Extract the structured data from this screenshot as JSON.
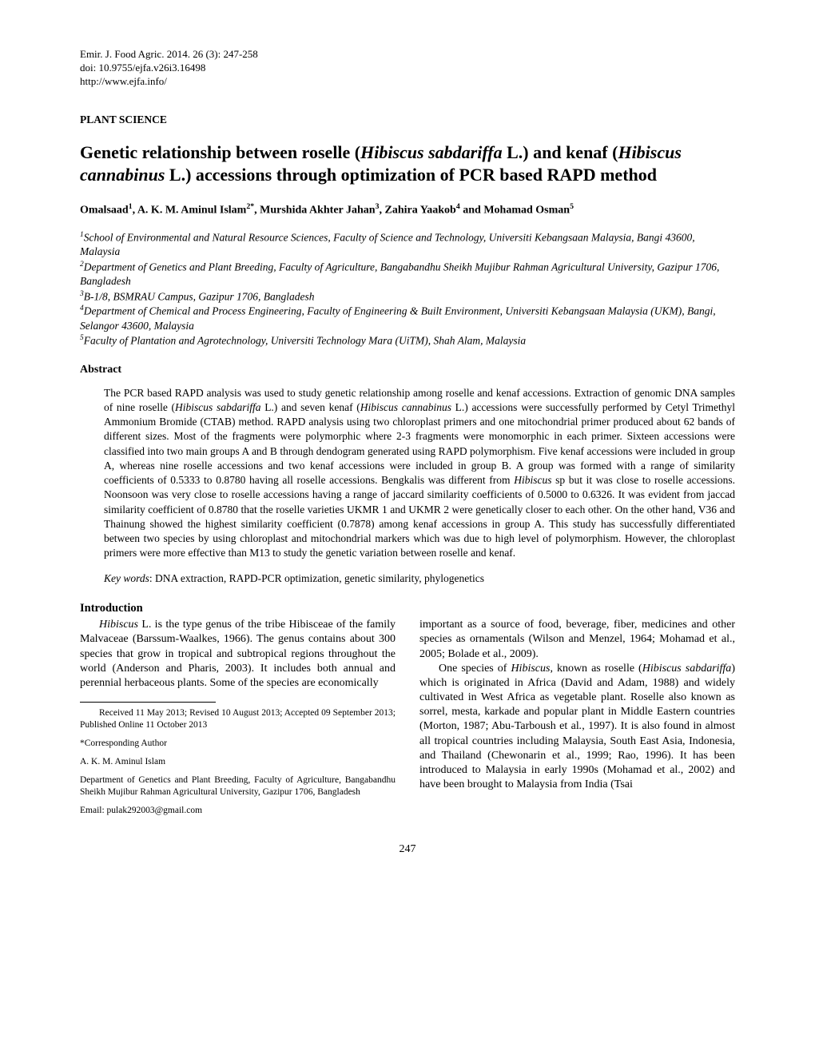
{
  "header": {
    "journal": "Emir. J. Food Agric. 2014. 26 (3): 247-258",
    "doi": "doi: 10.9755/ejfa.v26i3.16498",
    "url": "http://www.ejfa.info/"
  },
  "section_label": "PLANT SCIENCE",
  "title_html": "Genetic relationship between roselle (<span class=\"italic\">Hibiscus sabdariffa</span> L.) and kenaf (<span class=\"italic\">Hibiscus cannabinus</span> L.) accessions through optimization of PCR based RAPD method",
  "authors_html": "Omalsaad<sup>1</sup>, A. K. M. Aminul Islam<sup>2*</sup>, Murshida Akhter Jahan<sup>3</sup>, Zahira Yaakob<sup>4</sup> and Mohamad Osman<sup>5</sup>",
  "affiliations_html": "<sup>1</sup>School of Environmental and Natural Resource Sciences, Faculty of Science and Technology, Universiti Kebangsaan Malaysia, Bangi 43600, Malaysia<br><sup>2</sup>Department of Genetics and Plant Breeding, Faculty of Agriculture, Bangabandhu Sheikh Mujibur Rahman Agricultural University, Gazipur 1706, Bangladesh<br><sup>3</sup>B-1/8, BSMRAU Campus, Gazipur 1706, Bangladesh<br><sup>4</sup>Department of Chemical and Process Engineering, Faculty of Engineering & Built Environment, Universiti Kebangsaan Malaysia (UKM), Bangi, Selangor 43600, Malaysia<br><sup>5</sup>Faculty of Plantation and Agrotechnology, Universiti Technology Mara (UiTM), Shah Alam, Malaysia",
  "abstract_label": "Abstract",
  "abstract_body_html": "The PCR based RAPD analysis was used to study genetic relationship among roselle and kenaf accessions. Extraction of genomic DNA samples of nine roselle (<span class=\"italic\">Hibiscus sabdariffa</span> L.) and seven kenaf (<span class=\"italic\">Hibiscus cannabinus</span> L.) accessions were successfully performed by Cetyl Trimethyl Ammonium Bromide (CTAB) method. RAPD analysis using two chloroplast primers and one mitochondrial primer produced about 62 bands of different sizes. Most of the fragments were polymorphic where 2-3 fragments were monomorphic in each primer. Sixteen accessions were classified into two main groups A and B through dendogram generated using RAPD polymorphism. Five kenaf accessions were included in group A, whereas nine roselle accessions and two kenaf accessions were included in group B. A group was formed with a range of similarity coefficients of 0.5333 to 0.8780 having all roselle accessions. Bengkalis was different from <span class=\"italic\">Hibiscus</span> sp but it was close to roselle accessions. Noonsoon was very close to roselle accessions having a range of jaccard similarity coefficients of 0.5000 to 0.6326. It was evident from jaccad similarity coefficient of 0.8780 that the roselle varieties UKMR 1 and UKMR 2 were genetically closer to each other. On the other hand, V36 and Thainung showed the highest similarity coefficient (0.7878) among kenaf accessions in group A. This study has successfully differentiated between two species by using chloroplast and mitochondrial markers which was due to high level of polymorphism. However, the chloroplast primers were more effective than M13 to study the genetic variation between roselle and kenaf.",
  "keywords_label": "Key words",
  "keywords_text": ": DNA extraction, RAPD-PCR optimization, genetic similarity, phylogenetics",
  "intro_label": "Introduction",
  "intro_left_html": "<span class=\"italic\">Hibiscus</span> L. is the type genus of the tribe Hibisceae of the family Malvaceae (Barssum-Waalkes, 1966). The genus contains about 300 species that grow in tropical and subtropical regions throughout the world (Anderson and Pharis, 2003). It includes both annual and perennial herbaceous plants. Some of the species are economically",
  "intro_right_p1_html": "important as a source of food, beverage, fiber, medicines and other species as ornamentals (Wilson and Menzel, 1964; Mohamad et al., 2005; Bolade et al., 2009).",
  "intro_right_p2_html": "One species of <span class=\"italic\">Hibiscus</span>, known as roselle (<span class=\"italic\">Hibiscus sabdariffa</span>) which is originated in Africa (David and Adam, 1988) and widely cultivated in West Africa as vegetable plant. Roselle also known as sorrel, mesta, karkade and popular plant in Middle Eastern countries (Morton, 1987; Abu-Tarboush et al<span class=\"italic\">.</span>, 1997). It is also found in almost all tropical countries including Malaysia, South East Asia, Indonesia, and Thailand (Chewonarin et al., 1999; Rao, 1996). It has been introduced to Malaysia in early 1990s (Mohamad et al., 2002) and have been brought to Malaysia from India (Tsai",
  "footnote": {
    "received": "Received 11 May 2013; Revised 10 August 2013; Accepted 09 September 2013; Published Online 11 October 2013",
    "corresponding": "*Corresponding Author",
    "author_name": "A. K. M. Aminul Islam",
    "author_dept": "Department of Genetics and Plant Breeding, Faculty of Agriculture, Bangabandhu Sheikh Mujibur Rahman Agricultural University, Gazipur 1706, Bangladesh",
    "email": "Email: pulak292003@gmail.com"
  },
  "page_number": "247"
}
